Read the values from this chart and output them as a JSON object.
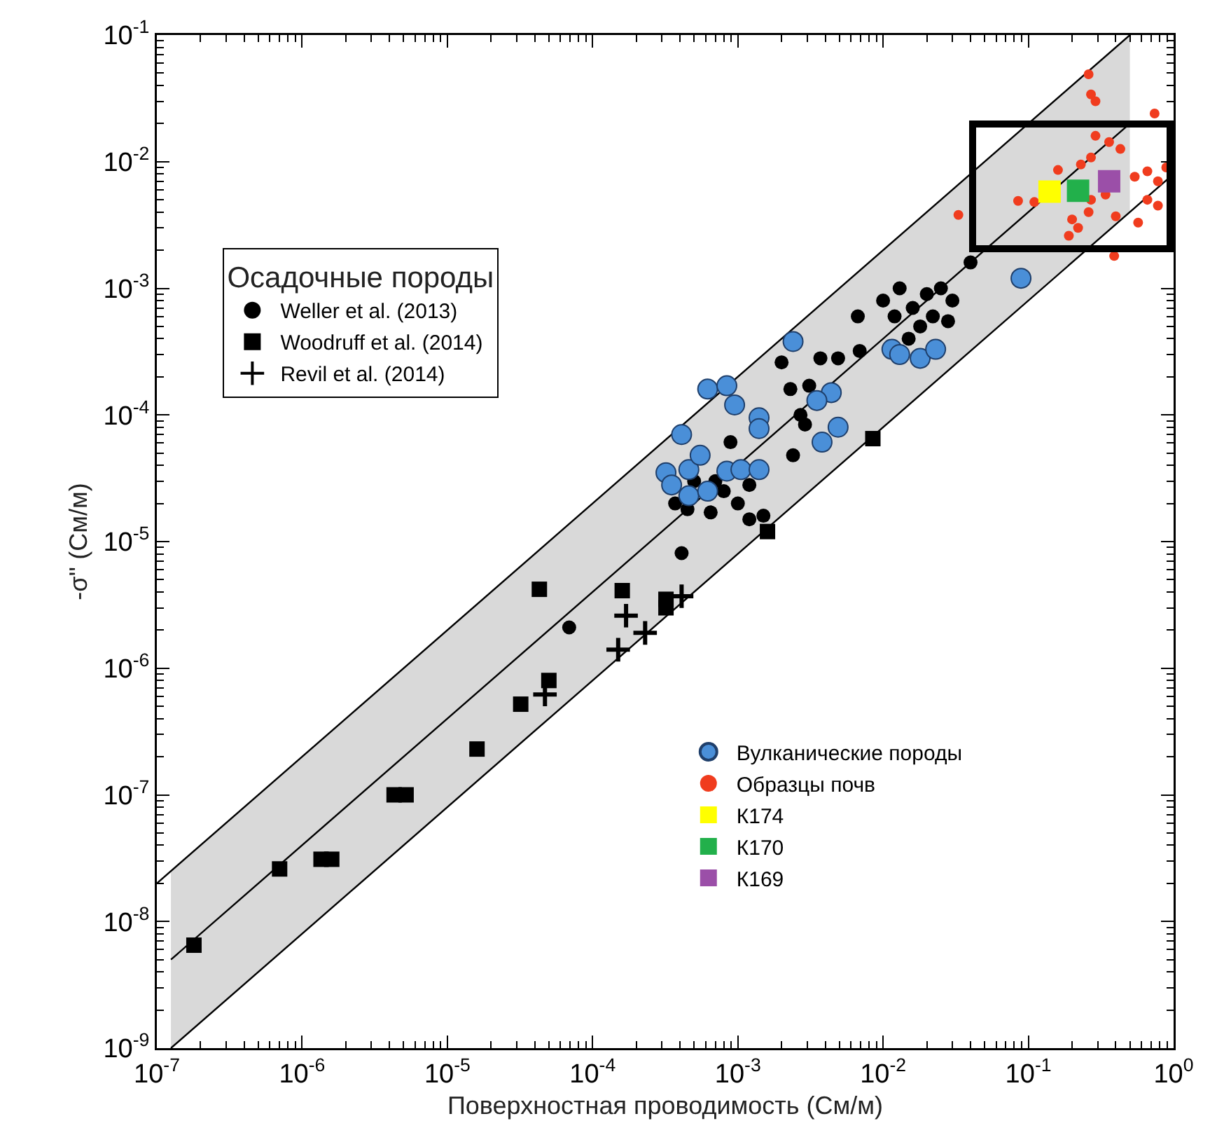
{
  "chart_data": {
    "type": "scatter",
    "xlabel": "Поверхностная проводимость (См/м)",
    "ylabel": "-σ'' (См/м)",
    "legend_title": "Осадочные породы",
    "legend": "left",
    "log": "xy",
    "grid": false,
    "xlim": [
      1e-07,
      1
    ],
    "ylim": [
      1e-09,
      0.1
    ],
    "xticks": [
      {
        "value": 1e-07,
        "label": "10$^{-7}$"
      },
      {
        "value": 1e-06,
        "label": "10$^{-6}$"
      },
      {
        "value": 1e-05,
        "label": "10$^{-5}$"
      },
      {
        "value": 0.0001,
        "label": "10$^{-4}$"
      },
      {
        "value": 0.001,
        "label": "10$^{-3}$"
      },
      {
        "value": 0.01,
        "label": "10$^{-2}$"
      },
      {
        "value": 0.1,
        "label": "10$^{-1}$"
      },
      {
        "value": 1,
        "label": "10$^{0}$"
      }
    ],
    "yticks": [
      {
        "value": 1e-09,
        "label": "10$^{-9}$"
      },
      {
        "value": 1e-08,
        "label": "10$^{-8}$"
      },
      {
        "value": 1e-07,
        "label": "10$^{-7}$"
      },
      {
        "value": 1e-06,
        "label": "10$^{-6}$"
      },
      {
        "value": 1e-05,
        "label": "10$^{-5}$"
      },
      {
        "value": 0.0001,
        "label": "10$^{-4}$"
      },
      {
        "value": 0.001,
        "label": "10$^{-3}$"
      },
      {
        "value": 0.01,
        "label": "10$^{-2}$"
      },
      {
        "value": 0.1,
        "label": "10$^{-1}$"
      }
    ],
    "series": [
      {
        "type": "line",
        "color": "#000000",
        "line_style": "solid",
        "x": [
          1.25e-07,
          0.5
        ],
        "values": [
          5e-09,
          0.02
        ],
        "lower": [
          1e-09,
          0.004
        ],
        "upper": [
          2.5e-08,
          0.1
        ]
      },
      {
        "type": "line",
        "color": "#000000",
        "line_style": "solid",
        "x": [
          1e-07,
          0.5
        ],
        "values": [
          2e-08,
          0.1
        ]
      },
      {
        "type": "line",
        "color": "#000000",
        "line_style": "solid",
        "x": [
          1.25e-07,
          1
        ],
        "values": [
          1e-09,
          0.008
        ]
      },
      {
        "name": "Weller et al. (2013)",
        "color": "#000000",
        "marker": "circle",
        "x": [
          6.9e-05,
          0.00041,
          0.0024,
          0.0012,
          0.0015,
          0.00037,
          0.00045,
          0.00065,
          0.0008,
          0.001,
          0.0007,
          0.0005,
          0.0012,
          0.00089,
          0.0023,
          0.0027,
          0.0029,
          0.0031,
          0.002,
          0.0037,
          0.0049,
          0.0069,
          0.0067,
          0.01,
          0.013,
          0.016,
          0.02,
          0.025,
          0.03,
          0.012,
          0.018,
          0.022,
          0.015,
          0.028,
          0.04
        ],
        "values": [
          2.1e-06,
          8.1e-06,
          4.8e-05,
          1.5e-05,
          1.6e-05,
          2e-05,
          1.8e-05,
          1.7e-05,
          2.5e-05,
          2e-05,
          3e-05,
          3e-05,
          2.8e-05,
          6.1e-05,
          0.00016,
          0.0001,
          8.4e-05,
          0.00017,
          0.00026,
          0.00028,
          0.00028,
          0.00032,
          0.0006,
          0.0008,
          0.001,
          0.0007,
          0.0009,
          0.001,
          0.0008,
          0.0006,
          0.0005,
          0.0006,
          0.0004,
          0.00055,
          0.0016
        ]
      },
      {
        "name": "Woodruff et al. (2014)",
        "color": "#000000",
        "marker": "square",
        "x": [
          1.8e-07,
          7e-07,
          1.35e-06,
          1.6e-06,
          4.3e-06,
          5.2e-06,
          1.6e-05,
          3.2e-05,
          5e-05,
          4.3e-05,
          0.00016,
          0.00032,
          0.00032,
          0.0085,
          0.0016
        ],
        "values": [
          6.5e-09,
          2.6e-08,
          3.1e-08,
          3.1e-08,
          1e-07,
          1e-07,
          2.3e-07,
          5.2e-07,
          8e-07,
          4.2e-06,
          4.1e-06,
          3.5e-06,
          3e-06,
          6.5e-05,
          1.2e-05
        ]
      },
      {
        "name": "Revil et al. (2014)",
        "color": "#000000",
        "marker": "cross",
        "x": [
          4.7e-05,
          0.00017,
          0.00023,
          0.00015,
          0.00041
        ],
        "values": [
          6.2e-07,
          2.6e-06,
          1.9e-06,
          1.4e-06,
          3.7e-06
        ]
      },
      {
        "name": "Вулканические породы",
        "color": "#4a8fd8",
        "marker": "circle",
        "x": [
          0.00062,
          0.00084,
          0.00095,
          0.00041,
          0.0014,
          0.0014,
          0.00032,
          0.00046,
          0.00055,
          0.00046,
          0.00062,
          0.00084,
          0.00105,
          0.0014,
          0.00035,
          0.0024,
          0.0044,
          0.0035,
          0.0049,
          0.0038,
          0.0115,
          0.013,
          0.018,
          0.023,
          0.089
        ],
        "values": [
          0.00016,
          0.00017,
          0.00012,
          7e-05,
          9.5e-05,
          7.8e-05,
          3.5e-05,
          3.7e-05,
          4.8e-05,
          2.3e-05,
          2.5e-05,
          3.6e-05,
          3.7e-05,
          3.7e-05,
          2.8e-05,
          0.00038,
          0.00015,
          0.00013,
          8e-05,
          6.1e-05,
          0.00033,
          0.0003,
          0.00028,
          0.00033,
          0.0012
        ]
      },
      {
        "name": "Образцы почв",
        "color": "#f03c1e",
        "marker": "circle",
        "x": [
          0.26,
          0.27,
          0.29,
          0.74,
          0.033,
          0.085,
          0.16,
          0.29,
          0.36,
          0.43,
          0.23,
          0.27,
          0.54,
          0.66,
          0.78,
          0.27,
          0.34,
          0.26,
          0.2,
          0.22,
          0.19,
          0.66,
          0.78,
          0.57,
          0.4,
          0.11,
          0.39,
          0.89
        ],
        "values": [
          0.049,
          0.034,
          0.03,
          0.024,
          0.0038,
          0.0049,
          0.0086,
          0.016,
          0.0143,
          0.0126,
          0.0095,
          0.0108,
          0.0076,
          0.0084,
          0.007,
          0.005,
          0.0055,
          0.004,
          0.0035,
          0.003,
          0.0026,
          0.005,
          0.0045,
          0.0033,
          0.0037,
          0.0048,
          0.0018,
          0.009
        ]
      },
      {
        "name": "К174",
        "color": "#ffff00",
        "marker": "square",
        "x": [
          0.14
        ],
        "values": [
          0.0058
        ]
      },
      {
        "name": "К170",
        "color": "#22b04b",
        "marker": "square",
        "x": [
          0.22
        ],
        "values": [
          0.0059
        ]
      },
      {
        "name": "К169",
        "color": "#9b4fa8",
        "marker": "square",
        "x": [
          0.36
        ],
        "values": [
          0.007
        ]
      }
    ]
  }
}
